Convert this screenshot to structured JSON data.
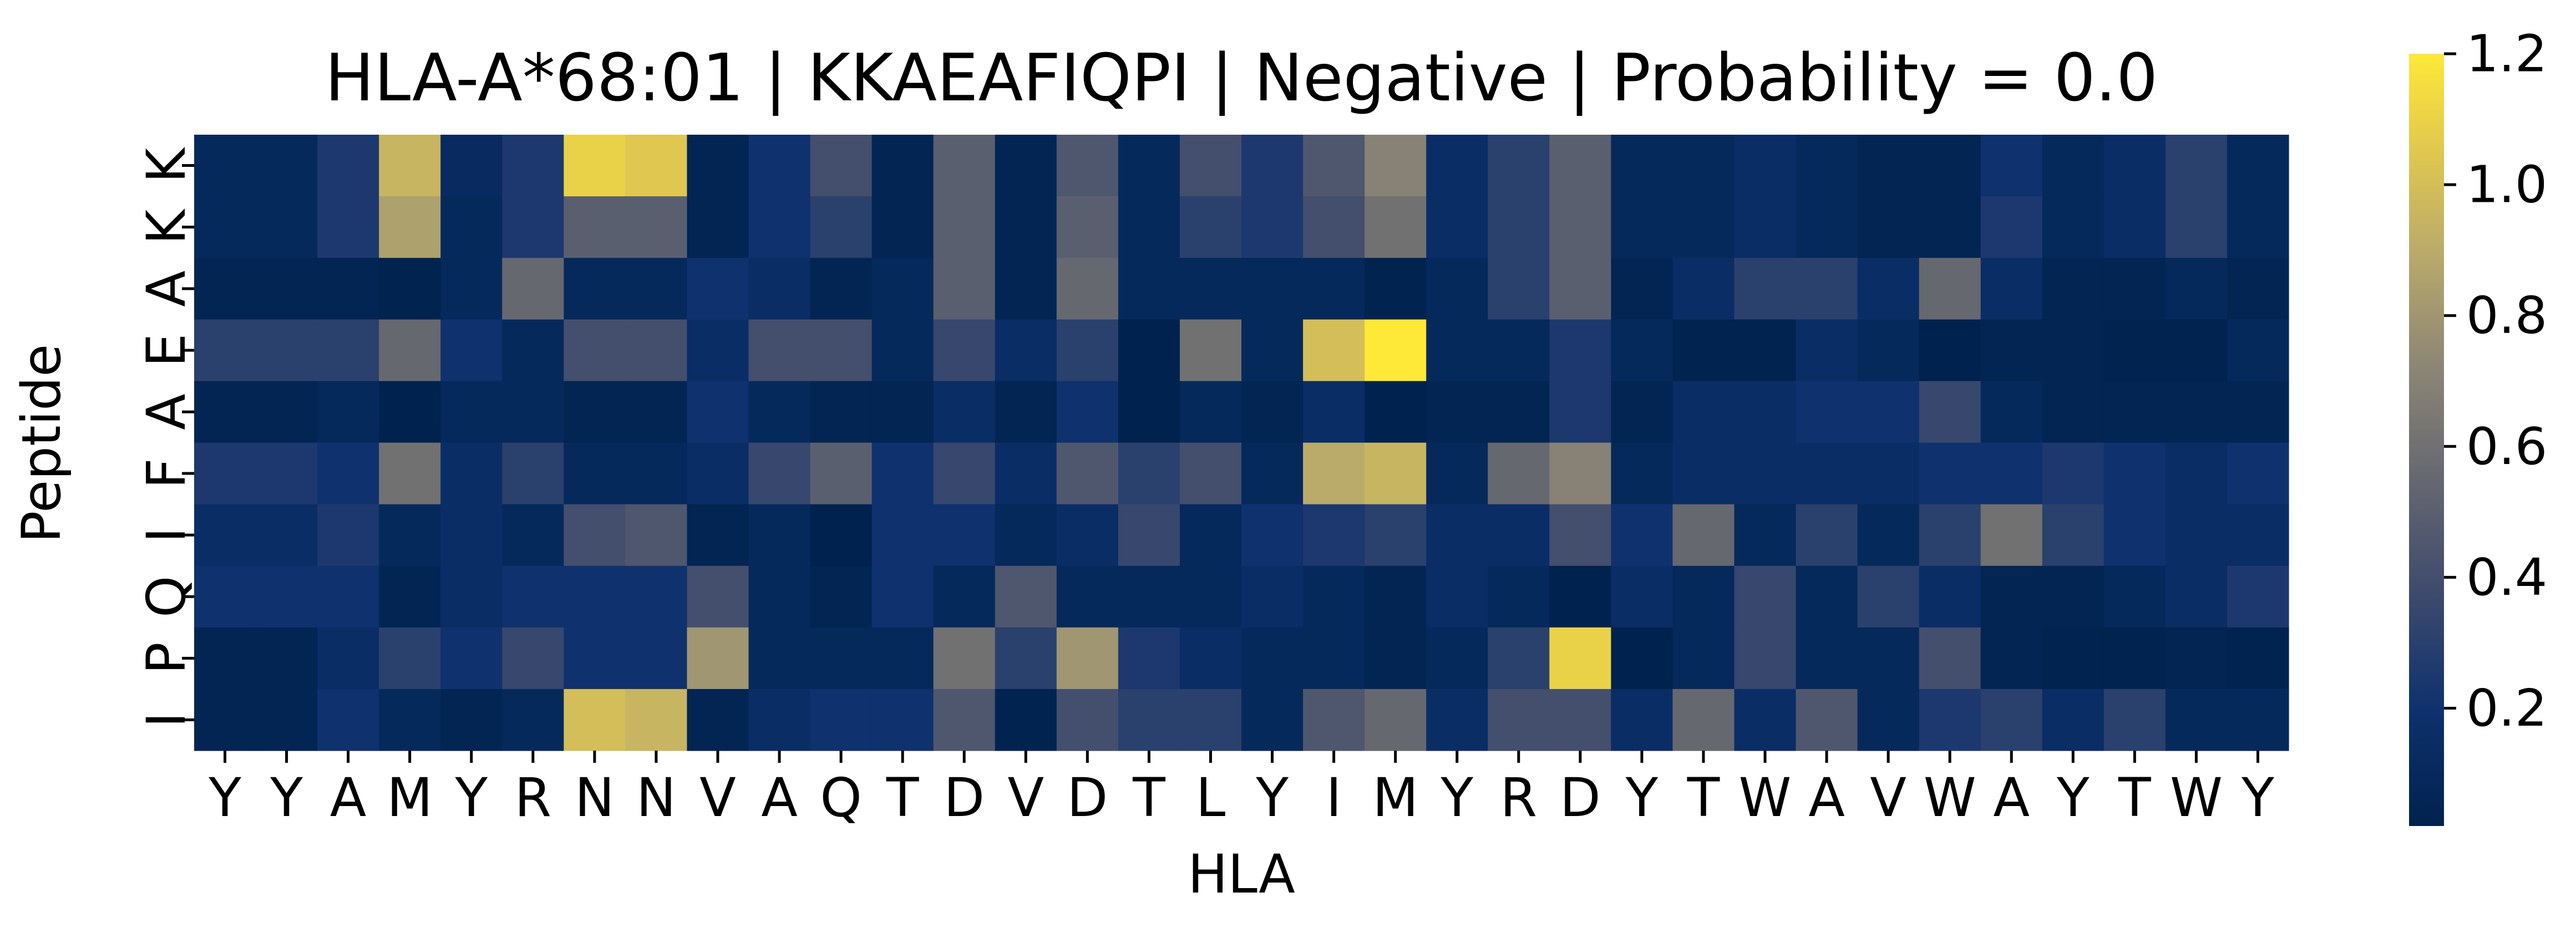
{
  "chart_data": {
    "type": "heatmap",
    "title": "HLA-A*68:01 | KKAEAFIQPI | Negative | Probability = 0.0",
    "xlabel": "HLA",
    "ylabel": "Peptide",
    "x_tick_labels": [
      "Y",
      "Y",
      "A",
      "M",
      "Y",
      "R",
      "N",
      "N",
      "V",
      "A",
      "Q",
      "T",
      "D",
      "V",
      "D",
      "T",
      "L",
      "Y",
      "I",
      "M",
      "Y",
      "R",
      "D",
      "Y",
      "T",
      "W",
      "A",
      "V",
      "W",
      "A",
      "Y",
      "T",
      "W",
      "Y"
    ],
    "y_tick_labels": [
      "K",
      "K",
      "A",
      "E",
      "A",
      "F",
      "I",
      "Q",
      "P",
      "I"
    ],
    "colormap": "cividis",
    "colorbar": {
      "vmin": 0.02,
      "vmax": 1.2,
      "ticks": [
        "0.2",
        "0.4",
        "0.6",
        "0.8",
        "1.0",
        "1.2"
      ]
    },
    "values": [
      [
        0.1,
        0.1,
        0.25,
        0.95,
        0.12,
        0.25,
        1.1,
        1.05,
        0.05,
        0.2,
        0.4,
        0.05,
        0.5,
        0.05,
        0.45,
        0.1,
        0.4,
        0.25,
        0.45,
        0.7,
        0.15,
        0.3,
        0.5,
        0.1,
        0.1,
        0.15,
        0.1,
        0.05,
        0.05,
        0.2,
        0.1,
        0.15,
        0.3,
        0.1
      ],
      [
        0.1,
        0.1,
        0.25,
        0.85,
        0.1,
        0.25,
        0.5,
        0.5,
        0.05,
        0.2,
        0.3,
        0.05,
        0.5,
        0.05,
        0.5,
        0.1,
        0.3,
        0.25,
        0.4,
        0.6,
        0.15,
        0.3,
        0.5,
        0.1,
        0.1,
        0.15,
        0.1,
        0.05,
        0.05,
        0.25,
        0.1,
        0.15,
        0.3,
        0.1
      ],
      [
        0.05,
        0.05,
        0.05,
        0.03,
        0.1,
        0.55,
        0.1,
        0.1,
        0.2,
        0.15,
        0.05,
        0.1,
        0.5,
        0.05,
        0.55,
        0.1,
        0.1,
        0.1,
        0.1,
        0.03,
        0.1,
        0.3,
        0.5,
        0.05,
        0.15,
        0.3,
        0.3,
        0.15,
        0.55,
        0.15,
        0.05,
        0.05,
        0.1,
        0.05
      ],
      [
        0.3,
        0.3,
        0.3,
        0.55,
        0.2,
        0.1,
        0.4,
        0.4,
        0.15,
        0.4,
        0.4,
        0.1,
        0.35,
        0.15,
        0.3,
        0.02,
        0.6,
        0.1,
        1.0,
        1.2,
        0.1,
        0.1,
        0.25,
        0.1,
        0.03,
        0.03,
        0.15,
        0.1,
        0.02,
        0.05,
        0.05,
        0.03,
        0.03,
        0.1
      ],
      [
        0.05,
        0.05,
        0.1,
        0.02,
        0.1,
        0.1,
        0.05,
        0.05,
        0.2,
        0.1,
        0.05,
        0.05,
        0.15,
        0.05,
        0.2,
        0.02,
        0.1,
        0.05,
        0.15,
        0.02,
        0.05,
        0.05,
        0.25,
        0.05,
        0.15,
        0.15,
        0.2,
        0.2,
        0.35,
        0.1,
        0.05,
        0.05,
        0.05,
        0.05
      ],
      [
        0.25,
        0.25,
        0.2,
        0.6,
        0.15,
        0.3,
        0.1,
        0.1,
        0.15,
        0.35,
        0.5,
        0.2,
        0.35,
        0.15,
        0.45,
        0.3,
        0.4,
        0.1,
        0.9,
        0.95,
        0.1,
        0.55,
        0.7,
        0.1,
        0.15,
        0.15,
        0.15,
        0.15,
        0.2,
        0.2,
        0.25,
        0.2,
        0.15,
        0.2
      ],
      [
        0.15,
        0.15,
        0.25,
        0.1,
        0.15,
        0.1,
        0.4,
        0.45,
        0.05,
        0.1,
        0.02,
        0.2,
        0.2,
        0.1,
        0.15,
        0.35,
        0.1,
        0.2,
        0.25,
        0.3,
        0.15,
        0.15,
        0.4,
        0.2,
        0.55,
        0.1,
        0.3,
        0.1,
        0.3,
        0.6,
        0.3,
        0.2,
        0.15,
        0.15
      ],
      [
        0.2,
        0.2,
        0.2,
        0.05,
        0.15,
        0.2,
        0.2,
        0.2,
        0.4,
        0.1,
        0.05,
        0.2,
        0.1,
        0.45,
        0.1,
        0.1,
        0.1,
        0.15,
        0.1,
        0.05,
        0.15,
        0.1,
        0.02,
        0.15,
        0.1,
        0.35,
        0.1,
        0.3,
        0.15,
        0.05,
        0.05,
        0.1,
        0.15,
        0.25
      ],
      [
        0.05,
        0.05,
        0.15,
        0.3,
        0.2,
        0.35,
        0.2,
        0.2,
        0.8,
        0.1,
        0.1,
        0.1,
        0.6,
        0.3,
        0.8,
        0.25,
        0.15,
        0.1,
        0.1,
        0.05,
        0.1,
        0.3,
        1.1,
        0.02,
        0.1,
        0.35,
        0.1,
        0.1,
        0.4,
        0.05,
        0.03,
        0.03,
        0.05,
        0.03
      ],
      [
        0.05,
        0.05,
        0.2,
        0.1,
        0.05,
        0.1,
        1.0,
        0.95,
        0.05,
        0.15,
        0.2,
        0.2,
        0.45,
        0.03,
        0.4,
        0.3,
        0.3,
        0.1,
        0.45,
        0.55,
        0.15,
        0.4,
        0.4,
        0.15,
        0.55,
        0.15,
        0.45,
        0.1,
        0.25,
        0.3,
        0.15,
        0.3,
        0.1,
        0.1
      ]
    ]
  }
}
